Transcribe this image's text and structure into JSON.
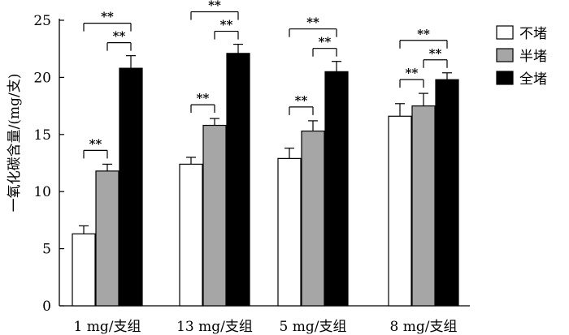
{
  "chart_data": {
    "type": "bar",
    "title": "",
    "xlabel": "",
    "ylabel": "一氧化碳含量/(mg/支)",
    "ylim": [
      0,
      25
    ],
    "yticks": [
      "0",
      "5",
      "10",
      "15",
      "20",
      "25"
    ],
    "categories": [
      "1 mg/支组",
      "13 mg/支组",
      "5 mg/支组",
      "8 mg/支组"
    ],
    "series": [
      {
        "name": "不堵",
        "color": "#ffffff",
        "values": [
          6.3,
          12.4,
          12.9,
          16.6
        ],
        "errors": [
          0.7,
          0.6,
          0.9,
          1.1
        ]
      },
      {
        "name": "半堵",
        "color": "#a6a6a6",
        "values": [
          11.8,
          15.8,
          15.3,
          17.5
        ],
        "errors": [
          0.6,
          0.6,
          0.9,
          1.1
        ]
      },
      {
        "name": "全堵",
        "color": "#000000",
        "values": [
          20.8,
          22.1,
          20.5,
          19.8
        ],
        "errors": [
          1.1,
          0.8,
          0.9,
          0.6
        ]
      }
    ],
    "significance_label": "**",
    "legend_position": "top-right"
  }
}
